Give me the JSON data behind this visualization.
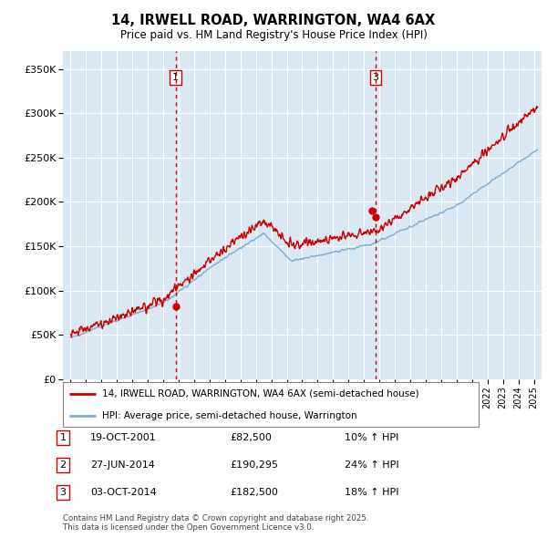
{
  "title": "14, IRWELL ROAD, WARRINGTON, WA4 6AX",
  "subtitle": "Price paid vs. HM Land Registry's House Price Index (HPI)",
  "legend_line1": "14, IRWELL ROAD, WARRINGTON, WA4 6AX (semi-detached house)",
  "legend_line2": "HPI: Average price, semi-detached house, Warrington",
  "footer": "Contains HM Land Registry data © Crown copyright and database right 2025.\nThis data is licensed under the Open Government Licence v3.0.",
  "transactions": [
    {
      "num": 1,
      "date": "19-OCT-2001",
      "price": "82,500",
      "hpi_pct": "10% ↑ HPI",
      "year": 2001.8,
      "price_val": 82500
    },
    {
      "num": 2,
      "date": "27-JUN-2014",
      "price": "190,295",
      "hpi_pct": "24% ↑ HPI",
      "year": 2014.49,
      "price_val": 190295
    },
    {
      "num": 3,
      "date": "03-OCT-2014",
      "price": "182,500",
      "hpi_pct": "18% ↑ HPI",
      "year": 2014.75,
      "price_val": 182500
    }
  ],
  "vline_transactions": [
    1,
    3
  ],
  "ylabel_ticks": [
    0,
    50000,
    100000,
    150000,
    200000,
    250000,
    300000,
    350000
  ],
  "ylabel_labels": [
    "£0",
    "£50K",
    "£100K",
    "£150K",
    "£200K",
    "£250K",
    "£300K",
    "£350K"
  ],
  "xlim": [
    1994.5,
    2025.5
  ],
  "ylim": [
    0,
    370000
  ],
  "bg_color": "#dae8f4",
  "line_color_price": "#cc0000",
  "line_color_hpi": "#7aadd4",
  "vline_color": "#cc0000",
  "annot_border_color": "#cc0000",
  "grid_color": "#ffffff"
}
